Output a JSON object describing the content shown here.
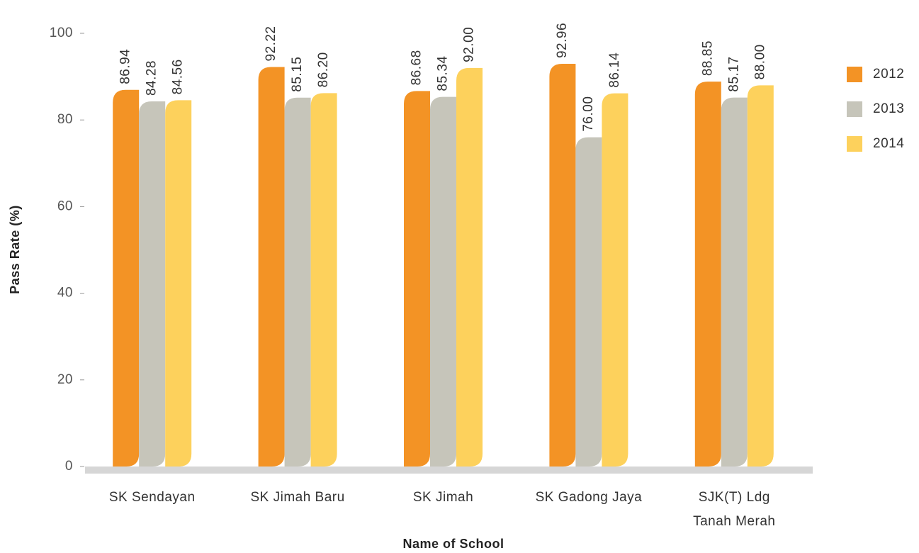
{
  "chart_data": {
    "type": "bar",
    "x_label": "Name of School",
    "y_label": "Pass Rate (%)",
    "categories": [
      "SK Sendayan",
      "SK Jimah Baru",
      "SK Jimah",
      "SK Gadong Jaya",
      "SJK(T) Ldg\nTanah Merah"
    ],
    "series": [
      {
        "name": "2012",
        "color": "#f39325",
        "values": [
          86.94,
          92.22,
          86.68,
          92.96,
          88.85
        ],
        "value_labels": [
          "86.94",
          "92.22",
          "86.68",
          "92.96",
          "88.85"
        ]
      },
      {
        "name": "2013",
        "color": "#c6c5ba",
        "values": [
          84.28,
          85.15,
          85.34,
          76.0,
          85.17
        ],
        "value_labels": [
          "84.28",
          "85.15",
          "85.34",
          "76.00",
          "85.17"
        ]
      },
      {
        "name": "2014",
        "color": "#fdd15c",
        "values": [
          84.56,
          86.2,
          92.0,
          86.14,
          88.0
        ],
        "value_labels": [
          "84.56",
          "86.20",
          "92.00",
          "86.14",
          "88.00"
        ]
      }
    ],
    "ylim": [
      0,
      100
    ],
    "yticks": [
      0,
      20,
      40,
      60,
      80,
      100
    ],
    "legend": "right"
  }
}
